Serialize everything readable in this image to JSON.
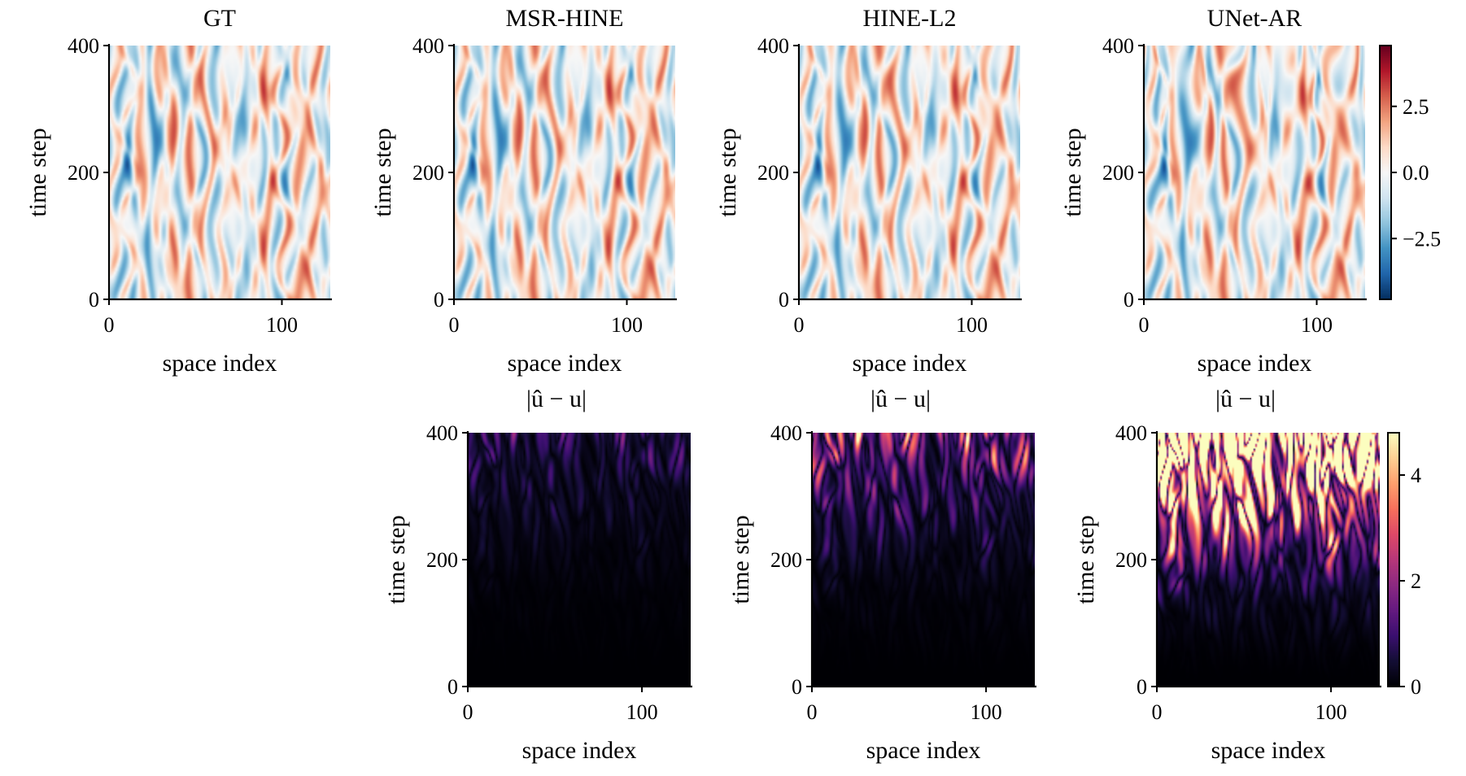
{
  "chart_data": {
    "type": "heatmap",
    "field_panels": [
      {
        "title": "GT",
        "variant": "gt"
      },
      {
        "title": "MSR-HINE",
        "variant": "msr"
      },
      {
        "title": "HINE-L2",
        "variant": "l2"
      },
      {
        "title": "UNet-AR",
        "variant": "unet"
      }
    ],
    "error_panels": [
      {
        "title": "|û − u|",
        "model": "MSR-HINE",
        "error_scale": 0.9
      },
      {
        "title": "|û − u|",
        "model": "HINE-L2",
        "error_scale": 1.4
      },
      {
        "title": "|û − u|",
        "model": "UNet-AR",
        "error_scale": 4.5
      }
    ],
    "xlabel": "space index",
    "ylabel": "time step",
    "xlim": [
      0,
      128
    ],
    "ylim": [
      0,
      400
    ],
    "xticks": [
      0,
      100
    ],
    "yticks": [
      0,
      200,
      400
    ],
    "field_colorbar": {
      "cmap": "RdBu_r",
      "range": [
        -4.8,
        4.8
      ],
      "ticks": [
        2.5,
        0.0,
        -2.5
      ],
      "tick_labels": [
        "2.5",
        "0.0",
        "−2.5"
      ]
    },
    "error_colorbar": {
      "cmap": "magma",
      "range": [
        0,
        4.8
      ],
      "ticks": [
        4,
        2,
        0
      ],
      "tick_labels": [
        "4",
        "2",
        "0"
      ]
    }
  }
}
